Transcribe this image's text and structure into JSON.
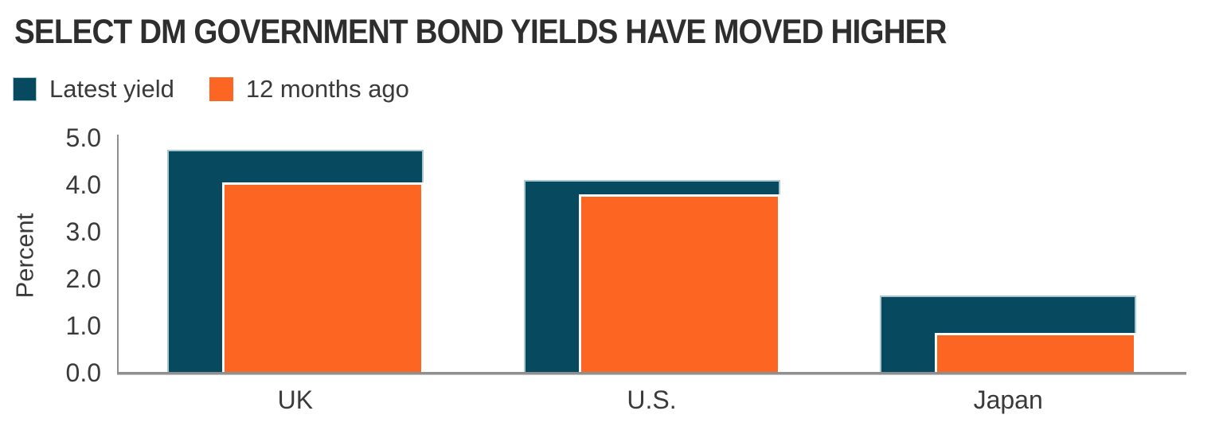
{
  "chart_data": {
    "type": "bar",
    "title": "SELECT DM GOVERNMENT BOND YIELDS HAVE MOVED HIGHER",
    "xlabel": "",
    "ylabel": "Percent",
    "categories": [
      "UK",
      "U.S.",
      "Japan"
    ],
    "series": [
      {
        "name": "Latest yield",
        "color": "#07495E",
        "values": [
          4.75,
          4.1,
          1.65
        ]
      },
      {
        "name": "12 months ago",
        "color": "#FC6522",
        "values": [
          4.05,
          3.8,
          0.85
        ]
      }
    ],
    "ylim": [
      0,
      5
    ],
    "yticks": [
      "0.0",
      "1.0",
      "2.0",
      "3.0",
      "4.0",
      "5.0"
    ],
    "legend_position": "top-left",
    "grid": "off",
    "bar_style": "overlapped, second series inset right-aligned in front",
    "colors": {
      "latest_yield": "#07495E",
      "twelve_months_ago": "#FC6522",
      "latest_yield_stroke": "#AAC8D2",
      "twelve_months_ago_stroke": "#FFFFFF",
      "axis": "#8F8F8F",
      "text": "#3A3A3A",
      "title_text": "#2E2E2E"
    }
  }
}
